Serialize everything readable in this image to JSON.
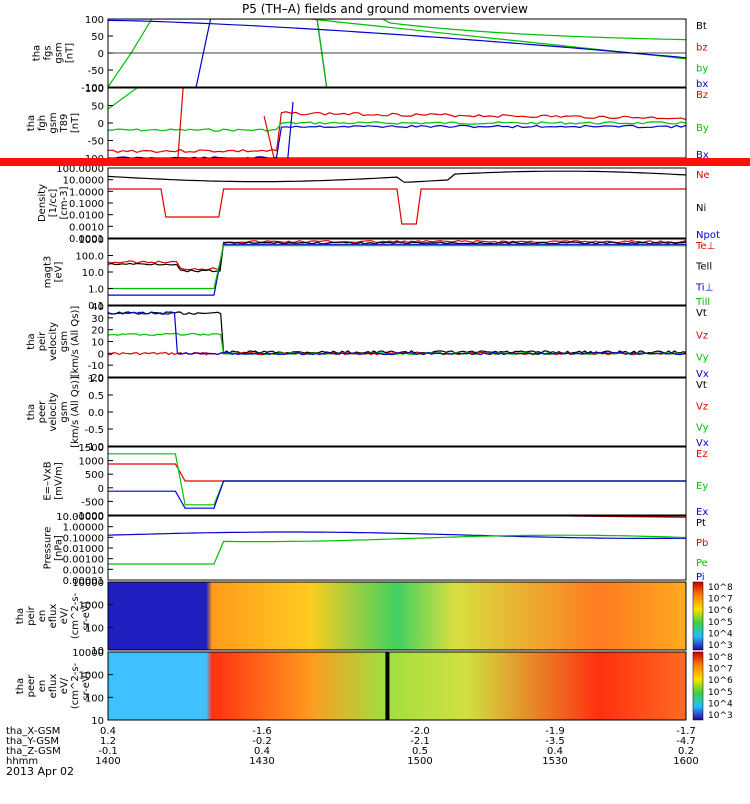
{
  "title": "P5 (TH–A) fields and ground moments overview",
  "date": "2013 Apr 02",
  "panels": [
    {
      "id": "fgs",
      "ylabel": [
        "tha",
        "fgs",
        "gsm",
        "[nT]"
      ],
      "ticks": [
        "100",
        "50",
        "0",
        "-50",
        "-100"
      ],
      "legend": [
        {
          "t": "Bt",
          "c": "#000000"
        },
        {
          "t": "bz",
          "c": "#e00000"
        },
        {
          "t": "by",
          "c": "#00c000"
        },
        {
          "t": "bx",
          "c": "#0000d0"
        }
      ]
    },
    {
      "id": "fgh",
      "ylabel": [
        "tha",
        "fgh",
        "gsm",
        "T89",
        "[nT]"
      ],
      "ticks": [
        "100",
        "50",
        "0",
        "-50",
        "-100"
      ],
      "legend": [
        {
          "t": "Bz",
          "c": "#e00000"
        },
        {
          "t": "By",
          "c": "#00c000"
        },
        {
          "t": "Bx",
          "c": "#0000d0"
        }
      ]
    },
    {
      "id": "density",
      "ylabel": [
        "Density",
        "[1/cc]",
        "[cm-3]"
      ],
      "ticks": [
        "100.0000",
        "10.0000",
        "1.0000",
        "0.1000",
        "0.0100",
        "0.0010",
        "0.0001"
      ],
      "legend": [
        {
          "t": "Ne",
          "c": "#e00000"
        },
        {
          "t": "Ni",
          "c": "#000000"
        },
        {
          "t": "Npot",
          "c": "#0000d0"
        }
      ]
    },
    {
      "id": "temp",
      "ylabel": [
        "magt3",
        "[eV]"
      ],
      "ticks": [
        "1000",
        "100.0",
        "10.0",
        "1.0",
        "0.1"
      ],
      "legend": [
        {
          "t": "Te⊥",
          "c": "#e00000"
        },
        {
          "t": "Tell",
          "c": "#000000"
        },
        {
          "t": "Ti⊥",
          "c": "#0000d0"
        },
        {
          "t": "Till",
          "c": "#00c000"
        }
      ]
    },
    {
      "id": "peir_vel",
      "ylabel": [
        "tha",
        "peir",
        "velocity",
        "gsm",
        "[km/s (All Qs)]"
      ],
      "ticks": [
        "40",
        "30",
        "20",
        "10",
        "0",
        "-10",
        "-20"
      ],
      "legend": [
        {
          "t": "Vt",
          "c": "#000000"
        },
        {
          "t": "Vz",
          "c": "#e00000"
        },
        {
          "t": "Vy",
          "c": "#00c000"
        },
        {
          "t": "Vx",
          "c": "#0000d0"
        }
      ]
    },
    {
      "id": "peer_vel",
      "ylabel": [
        "tha",
        "peer",
        "velocity",
        "gsm",
        "[km/s (All Qs)]"
      ],
      "ticks": [
        "1.0",
        "0.5",
        "0.0",
        "-0.5",
        "-1.0"
      ],
      "legend": [
        {
          "t": "Vt",
          "c": "#000000"
        },
        {
          "t": "Vz",
          "c": "#e00000"
        },
        {
          "t": "Vy",
          "c": "#00c000"
        },
        {
          "t": "Vx",
          "c": "#0000d0"
        }
      ]
    },
    {
      "id": "efield",
      "ylabel": [
        "E=–VxB",
        "[mV/m]"
      ],
      "ticks": [
        "1500",
        "1000",
        "500",
        "0",
        "-500",
        "-1000"
      ],
      "legend": [
        {
          "t": "Ez",
          "c": "#e00000"
        },
        {
          "t": "Ey",
          "c": "#00c000"
        },
        {
          "t": "Ex",
          "c": "#0000d0"
        }
      ]
    },
    {
      "id": "pressure",
      "ylabel": [
        "Pressure",
        "[nPa]"
      ],
      "ticks": [
        "10.00000",
        "1.00000",
        "0.10000",
        "0.01000",
        "0.00100",
        "0.00010",
        "0.00001"
      ],
      "legend": [
        {
          "t": "Pt",
          "c": "#000000"
        },
        {
          "t": "Pb",
          "c": "#e00000"
        },
        {
          "t": "Pe",
          "c": "#00c000"
        },
        {
          "t": "Pi",
          "c": "#0000d0"
        }
      ]
    },
    {
      "id": "peir_spec",
      "ylabel": [
        "tha",
        "peir",
        "en",
        "eflux",
        "eV/",
        "(cm^2-s-",
        "sr-eV)"
      ],
      "ticks": [
        "10000",
        "1000",
        "100",
        "10"
      ],
      "cbar": [
        "10^8",
        "10^7",
        "10^6",
        "10^5",
        "10^4",
        "10^3"
      ]
    },
    {
      "id": "peer_spec",
      "ylabel": [
        "tha",
        "peer",
        "en",
        "eflux",
        "eV/",
        "(cm^2-s-",
        "sr-eV)"
      ],
      "ticks": [
        "10000",
        "1000",
        "100",
        "10"
      ],
      "cbar": [
        "10^8",
        "10^7",
        "10^6",
        "10^5",
        "10^4",
        "10^3"
      ]
    }
  ],
  "ephemeris": {
    "labels": [
      "tha_X-GSM",
      "tha_Y-GSM",
      "tha_Z-GSM",
      "hhmm"
    ],
    "columns": [
      {
        "vals": [
          "0.4",
          "1.2",
          "-0.1",
          "1400"
        ]
      },
      {
        "vals": [
          "-1.6",
          "-0.2",
          "0.4",
          "1430"
        ]
      },
      {
        "vals": [
          "-2.0",
          "-2.1",
          "0.5",
          "1500"
        ]
      },
      {
        "vals": [
          "-1.9",
          "-3.5",
          "0.4",
          "1530"
        ]
      },
      {
        "vals": [
          "-1.7",
          "-4.7",
          "0.2",
          "1600"
        ]
      }
    ]
  },
  "chart_data": {
    "type": "line",
    "title": "P5 (TH–A) fields and ground moments overview",
    "x": [
      "1400",
      "1430",
      "1500",
      "1530",
      "1600"
    ],
    "xlabel": "hhmm",
    "series": [
      {
        "name": "Bt",
        "panel": "fgs",
        "values": [
          100,
          100,
          95,
          70,
          40
        ]
      },
      {
        "name": "by",
        "panel": "fgs",
        "values": [
          -100,
          80,
          -20,
          -45,
          -55
        ]
      },
      {
        "name": "Ni",
        "panel": "density",
        "values": [
          10,
          20,
          3,
          30,
          20
        ]
      },
      {
        "name": "Ne",
        "panel": "density",
        "values": [
          0.5,
          3,
          2,
          3,
          3
        ]
      },
      {
        "name": "Pi",
        "panel": "pressure",
        "values": [
          0.2,
          2,
          0.1,
          1,
          1
        ]
      },
      {
        "name": "Pe",
        "panel": "pressure",
        "values": [
          0.01,
          0.1,
          0.03,
          0.1,
          0.1
        ]
      }
    ]
  }
}
